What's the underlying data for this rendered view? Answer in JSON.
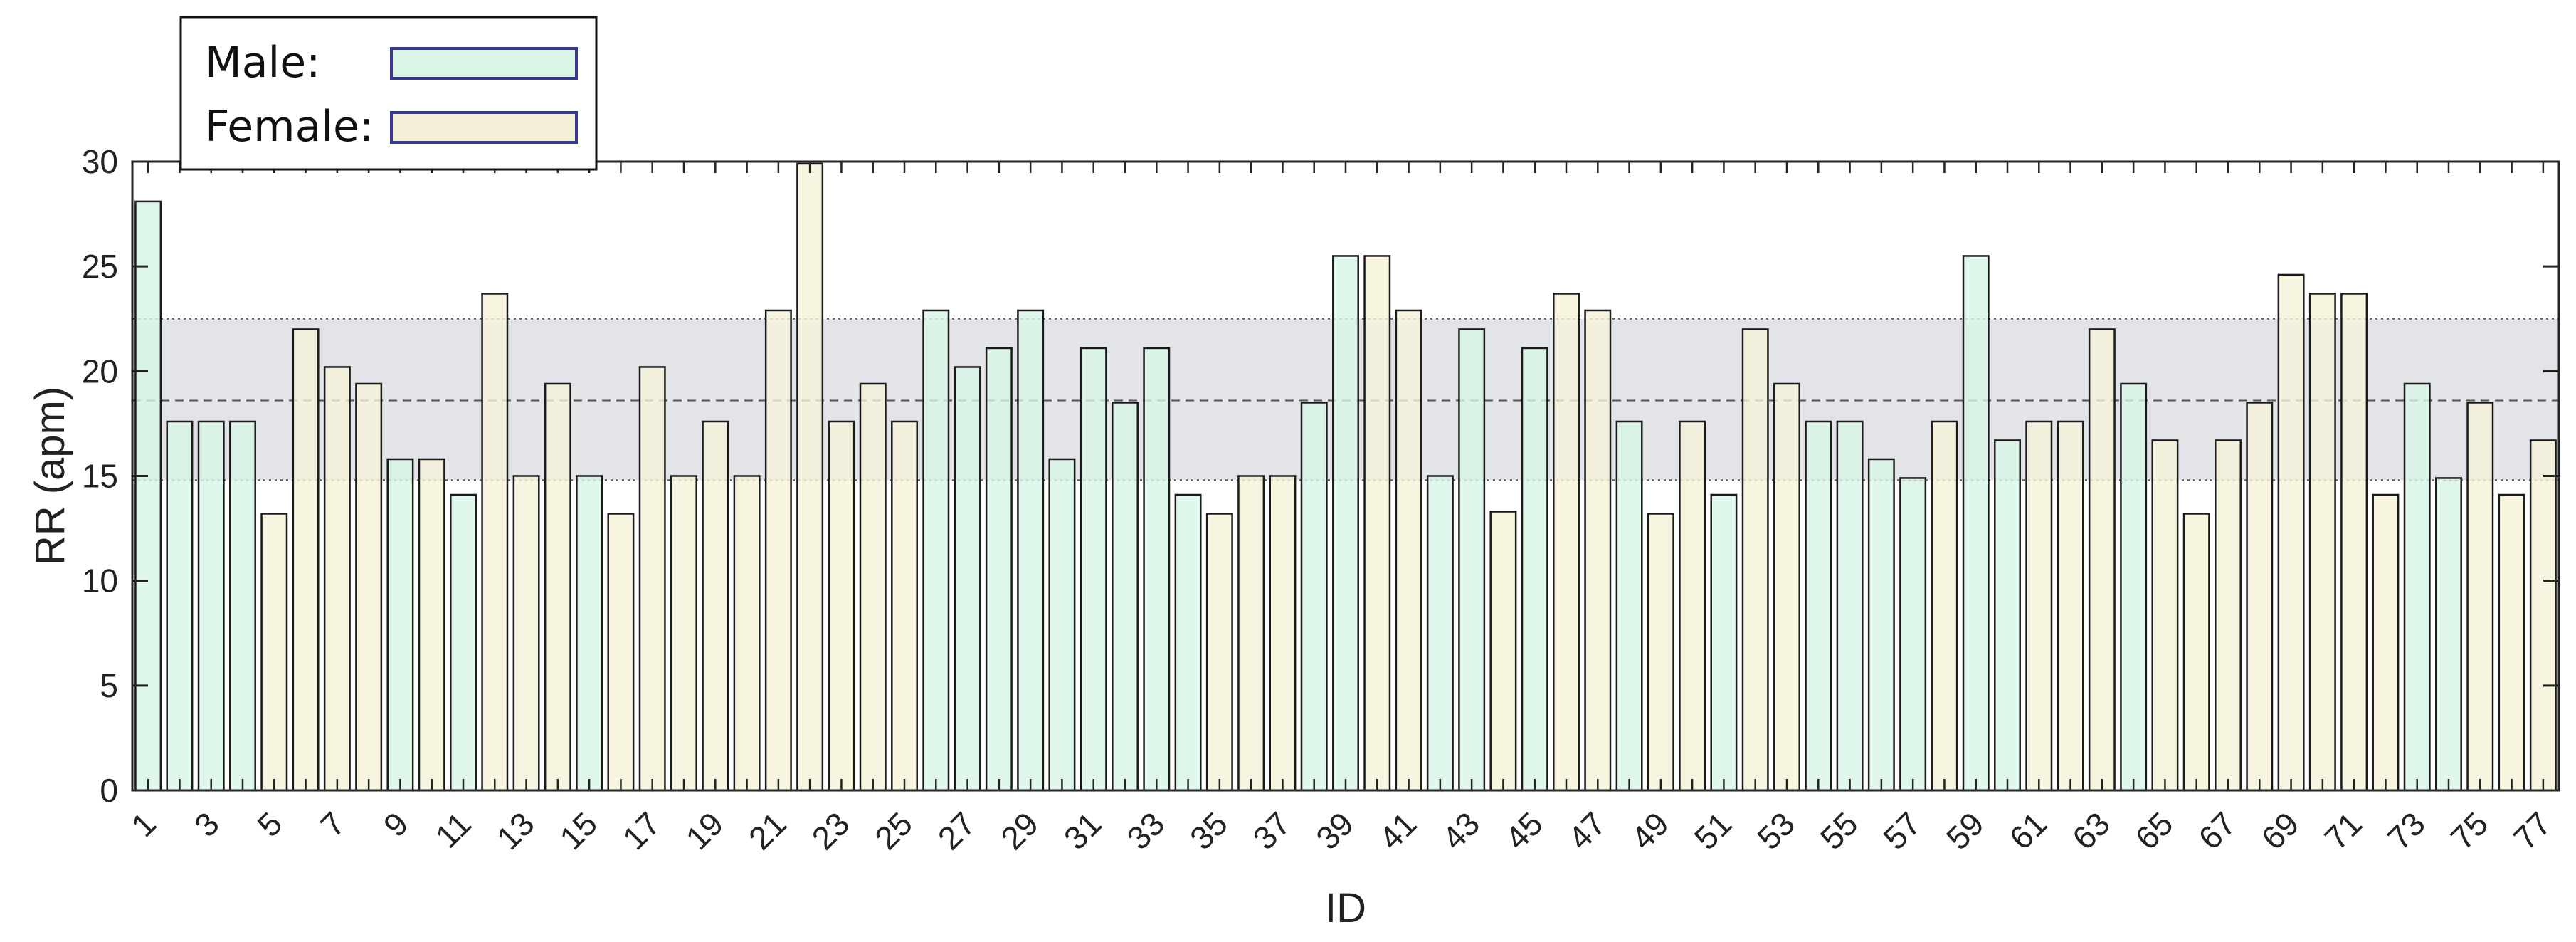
{
  "chart_data": {
    "type": "bar",
    "xlabel": "ID",
    "ylabel": "RR (apm)",
    "ylim": [
      0,
      30
    ],
    "yticks": [
      "0",
      "5",
      "10",
      "15",
      "20",
      "25",
      "30"
    ],
    "xtick_labels": [
      "1",
      "3",
      "5",
      "7",
      "9",
      "11",
      "13",
      "15",
      "17",
      "19",
      "21",
      "23",
      "25",
      "27",
      "29",
      "31",
      "33",
      "35",
      "37",
      "39",
      "41",
      "43",
      "45",
      "47",
      "49",
      "51",
      "53",
      "55",
      "57",
      "59",
      "61",
      "63",
      "65",
      "67",
      "69",
      "71",
      "73",
      "75",
      "77"
    ],
    "categories": [
      1,
      2,
      3,
      4,
      5,
      6,
      7,
      8,
      9,
      10,
      11,
      12,
      13,
      14,
      15,
      16,
      17,
      18,
      19,
      20,
      21,
      22,
      23,
      24,
      25,
      26,
      27,
      28,
      29,
      30,
      31,
      32,
      33,
      34,
      35,
      36,
      37,
      38,
      39,
      40,
      41,
      42,
      43,
      44,
      45,
      46,
      47,
      48,
      49,
      50,
      51,
      52,
      53,
      54,
      55,
      56,
      57,
      58,
      59,
      60,
      61,
      62,
      63,
      64,
      65,
      66,
      67,
      68,
      69,
      70,
      71,
      72,
      73,
      74,
      75,
      76,
      77
    ],
    "values": [
      28.1,
      17.6,
      17.6,
      17.6,
      13.2,
      22.0,
      20.2,
      19.4,
      15.8,
      15.8,
      14.1,
      23.7,
      15.0,
      19.4,
      15.0,
      13.2,
      20.2,
      15.0,
      17.6,
      15.0,
      22.9,
      29.9,
      17.6,
      19.4,
      17.6,
      22.9,
      20.2,
      21.1,
      22.9,
      15.8,
      21.1,
      18.5,
      21.1,
      14.1,
      13.2,
      15.0,
      15.0,
      18.5,
      25.5,
      25.5,
      22.9,
      15.0,
      22.0,
      13.3,
      21.1,
      23.7,
      22.9,
      17.6,
      13.2,
      17.6,
      14.1,
      22.0,
      19.4,
      17.6,
      17.6,
      15.8,
      14.9,
      17.6,
      25.5,
      16.7,
      17.6,
      17.6,
      22.0,
      19.4,
      16.7,
      13.2,
      16.7,
      18.5,
      24.6,
      23.7,
      23.7,
      14.1,
      19.4,
      14.9,
      18.5,
      14.1,
      16.7
    ],
    "groups": [
      "M",
      "M",
      "M",
      "M",
      "F",
      "F",
      "F",
      "F",
      "M",
      "F",
      "M",
      "F",
      "F",
      "F",
      "M",
      "F",
      "F",
      "F",
      "F",
      "F",
      "F",
      "F",
      "F",
      "F",
      "F",
      "M",
      "M",
      "M",
      "M",
      "M",
      "M",
      "M",
      "M",
      "M",
      "F",
      "F",
      "F",
      "M",
      "M",
      "F",
      "F",
      "M",
      "M",
      "F",
      "M",
      "F",
      "F",
      "M",
      "F",
      "F",
      "M",
      "F",
      "F",
      "M",
      "M",
      "M",
      "M",
      "F",
      "M",
      "M",
      "F",
      "F",
      "F",
      "M",
      "F",
      "F",
      "F",
      "F",
      "F",
      "F",
      "F",
      "F",
      "M",
      "M",
      "F",
      "F",
      "F"
    ],
    "legend": [
      {
        "label": "Male:",
        "group": "M",
        "color": "#d8f5e6"
      },
      {
        "label": "Female:",
        "group": "F",
        "color": "#f5f1d8"
      }
    ],
    "reference_band": {
      "low": 14.8,
      "mean": 18.6,
      "high": 22.5,
      "color": "#e3e4e8"
    },
    "legend_placement": "top-left",
    "grid": false
  }
}
